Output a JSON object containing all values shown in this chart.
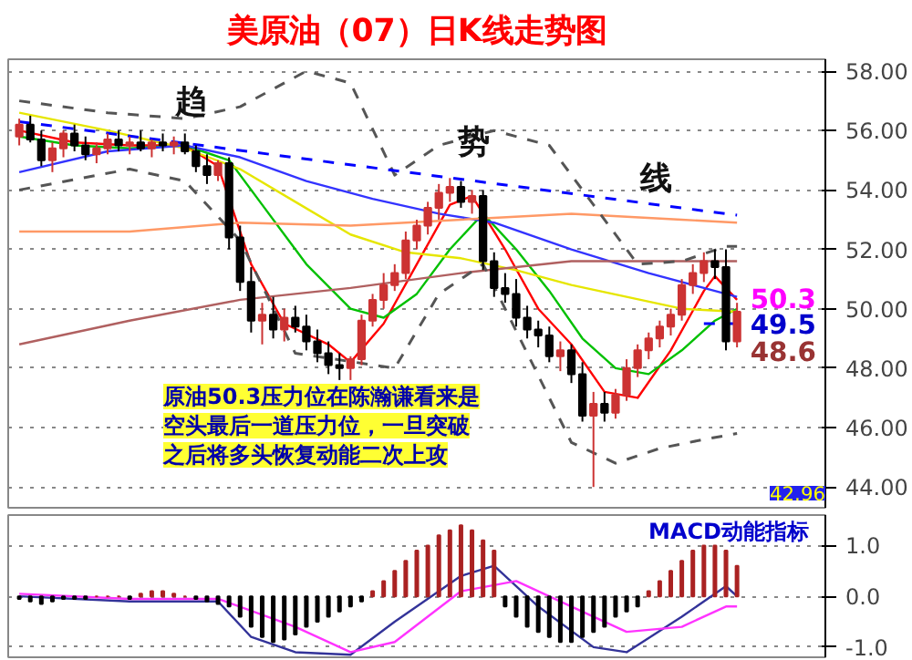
{
  "chart_data": [
    {
      "type": "candlestick",
      "title": "美原油（07）日K线走势图",
      "categories": [
        null,
        null,
        null,
        null,
        null,
        null,
        null,
        null,
        null,
        null,
        null,
        null,
        null,
        null,
        null,
        null,
        null,
        null,
        null,
        null,
        null,
        null,
        null,
        null,
        null,
        null,
        null,
        null,
        null,
        null,
        null,
        null,
        null,
        null,
        null,
        null,
        null,
        null,
        null,
        null,
        null,
        null,
        null,
        null,
        null,
        null,
        null,
        null,
        null,
        null,
        null,
        null,
        null,
        null,
        null,
        null,
        null,
        null,
        null,
        null,
        null,
        null,
        null,
        null,
        null,
        null
      ],
      "ohlc": [
        [
          55.8,
          56.4,
          55.5,
          56.2
        ],
        [
          56.2,
          56.5,
          55.6,
          55.7
        ],
        [
          55.7,
          56.0,
          54.8,
          55.0
        ],
        [
          55.0,
          55.6,
          54.6,
          55.4
        ],
        [
          55.4,
          56.0,
          55.1,
          55.9
        ],
        [
          55.9,
          56.2,
          55.3,
          55.5
        ],
        [
          55.5,
          55.8,
          55.0,
          55.2
        ],
        [
          55.2,
          55.6,
          54.9,
          55.4
        ],
        [
          55.4,
          55.9,
          55.2,
          55.7
        ],
        [
          55.7,
          56.0,
          55.3,
          55.5
        ],
        [
          55.5,
          55.8,
          55.2,
          55.6
        ],
        [
          55.6,
          56.0,
          55.3,
          55.4
        ],
        [
          55.4,
          55.7,
          55.1,
          55.6
        ],
        [
          55.6,
          55.9,
          55.3,
          55.5
        ],
        [
          55.5,
          55.8,
          55.2,
          55.6
        ],
        [
          55.6,
          55.9,
          55.2,
          55.3
        ],
        [
          55.3,
          55.5,
          54.6,
          54.8
        ],
        [
          54.8,
          55.2,
          54.2,
          54.5
        ],
        [
          54.5,
          55.0,
          54.3,
          54.9
        ],
        [
          54.9,
          55.1,
          52.0,
          52.4
        ],
        [
          52.4,
          52.8,
          50.6,
          50.9
        ],
        [
          50.9,
          51.4,
          49.2,
          49.6
        ],
        [
          49.6,
          50.2,
          48.8,
          49.8
        ],
        [
          49.8,
          50.4,
          49.0,
          49.3
        ],
        [
          49.3,
          50.0,
          48.9,
          49.7
        ],
        [
          49.7,
          50.1,
          49.2,
          49.4
        ],
        [
          49.4,
          49.8,
          48.6,
          48.9
        ],
        [
          48.9,
          49.3,
          48.2,
          48.5
        ],
        [
          48.5,
          48.9,
          47.8,
          48.1
        ],
        [
          48.1,
          48.5,
          47.6,
          48.0
        ],
        [
          48.0,
          48.4,
          47.6,
          48.3
        ],
        [
          48.3,
          49.8,
          48.1,
          49.6
        ],
        [
          49.6,
          50.5,
          49.4,
          50.3
        ],
        [
          50.3,
          51.2,
          50.0,
          50.8
        ],
        [
          50.8,
          51.5,
          50.6,
          51.2
        ],
        [
          51.2,
          52.6,
          51.0,
          52.3
        ],
        [
          52.3,
          53.0,
          52.0,
          52.8
        ],
        [
          52.8,
          53.6,
          52.5,
          53.4
        ],
        [
          53.4,
          54.2,
          53.0,
          53.9
        ],
        [
          53.9,
          54.4,
          53.6,
          54.1
        ],
        [
          54.1,
          54.3,
          53.4,
          53.6
        ],
        [
          53.6,
          54.0,
          53.2,
          53.8
        ],
        [
          53.8,
          54.0,
          51.3,
          51.6
        ],
        [
          51.6,
          51.9,
          50.4,
          50.7
        ],
        [
          50.7,
          51.2,
          50.2,
          50.5
        ],
        [
          50.5,
          51.0,
          49.4,
          49.7
        ],
        [
          49.7,
          50.1,
          49.0,
          49.3
        ],
        [
          49.3,
          49.6,
          48.7,
          49.1
        ],
        [
          49.1,
          49.4,
          48.2,
          48.4
        ],
        [
          48.4,
          48.9,
          47.9,
          48.6
        ],
        [
          48.6,
          48.8,
          47.5,
          47.8
        ],
        [
          47.8,
          48.2,
          46.2,
          46.4
        ],
        [
          46.4,
          47.2,
          44.0,
          46.8
        ],
        [
          46.8,
          47.2,
          46.2,
          46.5
        ],
        [
          46.5,
          47.3,
          46.3,
          47.1
        ],
        [
          47.1,
          48.3,
          46.9,
          48.0
        ],
        [
          48.0,
          48.8,
          47.7,
          48.6
        ],
        [
          48.6,
          49.2,
          48.3,
          49.0
        ],
        [
          49.0,
          49.6,
          48.7,
          49.4
        ],
        [
          49.4,
          50.0,
          49.1,
          49.8
        ],
        [
          49.8,
          51.0,
          49.6,
          50.8
        ],
        [
          50.8,
          51.5,
          50.5,
          51.2
        ],
        [
          51.2,
          51.9,
          50.9,
          51.6
        ],
        [
          51.6,
          52.0,
          51.0,
          51.4
        ],
        [
          51.4,
          52.0,
          48.6,
          48.9
        ],
        [
          48.9,
          50.2,
          48.7,
          49.9
        ]
      ],
      "colors": [
        "#cc3333",
        "#000000",
        "#000000",
        "#cc3333",
        "#cc3333",
        "#000000",
        "#000000",
        "#cc3333",
        "#cc3333",
        "#000000",
        "#cc3333",
        "#000000",
        "#cc3333",
        "#000000",
        "#cc3333",
        "#000000",
        "#000000",
        "#000000",
        "#cc3333",
        "#000000",
        "#000000",
        "#000000",
        "#cc3333",
        "#000000",
        "#cc3333",
        "#000000",
        "#000000",
        "#000000",
        "#000000",
        "#000000",
        "#cc3333",
        "#cc3333",
        "#cc3333",
        "#cc3333",
        "#cc3333",
        "#cc3333",
        "#cc3333",
        "#cc3333",
        "#cc3333",
        "#cc3333",
        "#000000",
        "#cc3333",
        "#000000",
        "#000000",
        "#000000",
        "#000000",
        "#000000",
        "#000000",
        "#000000",
        "#cc3333",
        "#000000",
        "#000000",
        "#cc3333",
        "#000000",
        "#cc3333",
        "#cc3333",
        "#cc3333",
        "#cc3333",
        "#cc3333",
        "#cc3333",
        "#cc3333",
        "#cc3333",
        "#cc3333",
        "#000000",
        "#000000",
        "#cc3333"
      ],
      "series": [
        {
          "type": "line",
          "color": "#ff0000",
          "values": [
            56.0,
            null,
            null,
            null,
            null,
            55.6,
            null,
            null,
            null,
            null,
            55.5,
            null,
            null,
            null,
            null,
            55.5,
            null,
            null,
            54.8,
            null,
            null,
            51.5,
            null,
            null,
            49.5,
            null,
            null,
            null,
            48.8,
            null,
            48.2,
            null,
            null,
            49.5,
            null,
            null,
            51.5,
            null,
            null,
            53.5,
            null,
            53.8,
            null,
            null,
            52.0,
            null,
            null,
            50.0,
            null,
            null,
            48.8,
            null,
            null,
            47.2,
            null,
            null,
            47.0,
            null,
            null,
            48.6,
            null,
            null,
            50.6,
            51.1,
            null,
            50.3
          ]
        },
        {
          "type": "line",
          "color": "#00c000",
          "values": [
            55.8,
            null,
            null,
            null,
            null,
            55.5,
            null,
            null,
            null,
            null,
            55.4,
            null,
            null,
            null,
            null,
            55.5,
            null,
            null,
            null,
            55.0,
            null,
            null,
            53.5,
            null,
            null,
            null,
            51.5,
            null,
            null,
            null,
            50.0,
            null,
            null,
            49.7,
            null,
            null,
            50.5,
            null,
            null,
            52.0,
            null,
            null,
            53.2,
            null,
            null,
            52.0,
            null,
            null,
            50.6,
            null,
            null,
            49.0,
            null,
            null,
            48.0,
            null,
            null,
            47.8,
            null,
            null,
            48.6,
            null,
            null,
            49.6,
            null,
            50.0
          ]
        },
        {
          "type": "line",
          "color": "#e6e600",
          "values": [
            56.6,
            null,
            null,
            null,
            null,
            null,
            null,
            null,
            56.0,
            null,
            null,
            null,
            null,
            null,
            null,
            55.4,
            null,
            null,
            null,
            null,
            54.7,
            null,
            null,
            null,
            null,
            53.6,
            null,
            null,
            null,
            null,
            52.5,
            null,
            null,
            null,
            null,
            51.9,
            null,
            null,
            null,
            null,
            51.7,
            null,
            null,
            null,
            null,
            51.3,
            null,
            null,
            null,
            null,
            50.8,
            null,
            null,
            null,
            null,
            50.4,
            null,
            null,
            null,
            null,
            50.0,
            null,
            null,
            null,
            null,
            49.9
          ]
        },
        {
          "type": "line",
          "color": "#3333ff",
          "values": [
            54.6,
            null,
            null,
            null,
            null,
            null,
            null,
            null,
            55.3,
            null,
            null,
            null,
            null,
            null,
            null,
            55.5,
            null,
            null,
            null,
            null,
            55.1,
            null,
            null,
            null,
            null,
            null,
            54.3,
            null,
            null,
            null,
            null,
            null,
            53.7,
            null,
            null,
            null,
            null,
            null,
            53.2,
            null,
            null,
            null,
            null,
            52.9,
            null,
            null,
            null,
            null,
            null,
            null,
            52.0,
            null,
            null,
            null,
            null,
            null,
            null,
            51.2,
            null,
            null,
            null,
            null,
            50.7,
            null,
            null,
            50.4
          ]
        },
        {
          "type": "line",
          "color": "#ff9966",
          "values": [
            52.6,
            null,
            null,
            null,
            null,
            null,
            null,
            null,
            null,
            null,
            52.6,
            null,
            null,
            null,
            null,
            null,
            null,
            null,
            null,
            null,
            52.9,
            null,
            null,
            null,
            null,
            null,
            null,
            null,
            null,
            null,
            52.8,
            null,
            null,
            null,
            null,
            null,
            null,
            null,
            null,
            null,
            53.0,
            null,
            null,
            null,
            null,
            null,
            null,
            null,
            null,
            null,
            53.2,
            null,
            null,
            null,
            null,
            null,
            null,
            null,
            null,
            null,
            53.0,
            null,
            null,
            null,
            null,
            52.9
          ]
        },
        {
          "type": "line",
          "color": "#b06060",
          "values": [
            48.8,
            null,
            null,
            null,
            null,
            null,
            null,
            null,
            null,
            null,
            49.6,
            null,
            null,
            null,
            null,
            null,
            null,
            null,
            null,
            null,
            50.3,
            null,
            null,
            null,
            null,
            null,
            null,
            null,
            null,
            null,
            50.7,
            null,
            null,
            null,
            null,
            null,
            null,
            null,
            null,
            null,
            51.2,
            null,
            null,
            null,
            null,
            null,
            null,
            null,
            null,
            null,
            51.6,
            null,
            null,
            null,
            null,
            null,
            null,
            null,
            null,
            null,
            51.6,
            null,
            null,
            null,
            null,
            51.6
          ]
        },
        {
          "type": "line",
          "color": "#555555",
          "line_style": "dashed",
          "values": [
            57.0,
            null,
            null,
            null,
            null,
            null,
            null,
            null,
            56.6,
            null,
            null,
            null,
            null,
            null,
            null,
            56.4,
            null,
            null,
            null,
            null,
            56.8,
            null,
            null,
            null,
            null,
            null,
            58.0,
            null,
            null,
            null,
            57.6,
            null,
            null,
            null,
            54.5,
            null,
            null,
            null,
            55.5,
            null,
            null,
            null,
            null,
            56.0,
            null,
            null,
            null,
            null,
            55.5,
            null,
            null,
            null,
            53.5,
            null,
            null,
            null,
            51.5,
            null,
            null,
            null,
            51.6,
            null,
            null,
            null,
            52.1,
            52.1
          ]
        },
        {
          "type": "line",
          "color": "#555555",
          "line_style": "dashed",
          "values": [
            54.0,
            null,
            null,
            null,
            null,
            null,
            null,
            null,
            null,
            null,
            54.7,
            null,
            null,
            null,
            null,
            54.3,
            null,
            null,
            null,
            null,
            52.3,
            null,
            null,
            null,
            null,
            48.5,
            null,
            null,
            null,
            null,
            null,
            null,
            null,
            null,
            48.0,
            null,
            null,
            null,
            50.5,
            null,
            null,
            null,
            51.5,
            null,
            null,
            null,
            48.5,
            null,
            null,
            null,
            45.5,
            null,
            null,
            null,
            44.8,
            null,
            null,
            null,
            45.3,
            null,
            null,
            null,
            45.6,
            null,
            null,
            45.8
          ]
        },
        {
          "type": "line",
          "color": "#0000ff",
          "line_style": "dashed",
          "values": [
            56.3,
            null,
            null,
            null,
            null,
            null,
            null,
            null,
            null,
            null,
            null,
            null,
            null,
            null,
            null,
            null,
            null,
            null,
            null,
            null,
            null,
            null,
            null,
            null,
            null,
            null,
            null,
            null,
            null,
            null,
            null,
            null,
            null,
            null,
            null,
            null,
            null,
            null,
            null,
            null,
            null,
            null,
            null,
            null,
            null,
            null,
            null,
            null,
            null,
            null,
            null,
            null,
            null,
            null,
            null,
            null,
            null,
            null,
            null,
            null,
            null,
            null,
            null,
            null,
            null,
            53.15
          ]
        },
        {
          "type": "line",
          "color": "#0000ff",
          "line_style": "dashed",
          "values": [
            null,
            null,
            null,
            null,
            null,
            null,
            null,
            null,
            null,
            null,
            null,
            null,
            null,
            null,
            null,
            null,
            null,
            null,
            null,
            null,
            null,
            null,
            null,
            null,
            null,
            null,
            null,
            null,
            null,
            null,
            null,
            null,
            null,
            null,
            null,
            null,
            null,
            null,
            null,
            null,
            null,
            null,
            null,
            null,
            null,
            null,
            null,
            null,
            null,
            null,
            null,
            null,
            null,
            null,
            null,
            null,
            null,
            null,
            null,
            null,
            null,
            null,
            49.5,
            null,
            null,
            49.5
          ]
        }
      ],
      "ylim": [
        43.3,
        58.4
      ],
      "yticks": [
        {
          "value": 44,
          "label": "44.00"
        },
        {
          "value": 46,
          "label": "46.00"
        },
        {
          "value": 48,
          "label": "48.00"
        },
        {
          "value": 50,
          "label": "50.00"
        },
        {
          "value": 52,
          "label": "52.00"
        },
        {
          "value": 54,
          "label": "54.00"
        },
        {
          "value": 56,
          "label": "56.00"
        },
        {
          "value": 58,
          "label": "58.00"
        }
      ],
      "grid": "y",
      "tick_labels": "y",
      "annotations": [
        "趋",
        "势",
        "线",
        "50.3",
        "49.5",
        "48.6",
        "原油50.3压力位在陈瀚谦看来是空头最后一道压力位，一旦突破之后将多头恢复动能二次上攻",
        "42.96"
      ]
    },
    {
      "type": "bar",
      "categories": [
        null,
        null,
        null,
        null,
        null,
        null,
        null,
        null,
        null,
        null,
        null,
        null,
        null,
        null,
        null,
        null,
        null,
        null,
        null,
        null,
        null,
        null,
        null,
        null,
        null,
        null,
        null,
        null,
        null,
        null,
        null,
        null,
        null,
        null,
        null,
        null,
        null,
        null,
        null,
        null,
        null,
        null,
        null,
        null,
        null,
        null,
        null,
        null,
        null,
        null,
        null,
        null,
        null,
        null,
        null,
        null,
        null,
        null,
        null,
        null,
        null,
        null,
        null,
        null,
        null,
        null
      ],
      "series": [
        {
          "type": "bar",
          "values": [
            -0.05,
            -0.1,
            -0.15,
            -0.1,
            -0.05,
            -0.05,
            -0.05,
            0,
            0,
            0,
            -0.05,
            0.05,
            0.1,
            0.1,
            0.05,
            0,
            -0.05,
            -0.1,
            -0.15,
            -0.2,
            -0.4,
            -0.6,
            -0.8,
            -0.9,
            -0.85,
            -0.75,
            -0.6,
            -0.5,
            -0.4,
            -0.3,
            -0.2,
            -0.1,
            0.1,
            0.3,
            0.5,
            0.7,
            0.9,
            1.0,
            1.2,
            1.3,
            1.4,
            1.3,
            1.1,
            0.9,
            -0.2,
            -0.4,
            -0.6,
            -0.7,
            -0.8,
            -0.9,
            -0.9,
            -0.8,
            -0.7,
            -0.6,
            -0.4,
            -0.3,
            -0.2,
            0.1,
            0.3,
            0.5,
            0.7,
            0.9,
            1.0,
            1.0,
            0.9,
            0.6
          ],
          "colors": [
            "#000000",
            "#000000",
            "#000000",
            "#000000",
            "#000000",
            "#000000",
            "#000000",
            "#aa2222",
            "#aa2222",
            "#aa2222",
            "#000000",
            "#aa2222",
            "#aa2222",
            "#aa2222",
            "#aa2222",
            "#aa2222",
            "#000000",
            "#000000",
            "#000000",
            "#000000",
            "#000000",
            "#000000",
            "#000000",
            "#000000",
            "#000000",
            "#000000",
            "#000000",
            "#000000",
            "#000000",
            "#000000",
            "#000000",
            "#000000",
            "#aa2222",
            "#aa2222",
            "#aa2222",
            "#aa2222",
            "#aa2222",
            "#aa2222",
            "#aa2222",
            "#aa2222",
            "#aa2222",
            "#aa2222",
            "#aa2222",
            "#aa2222",
            "#000000",
            "#000000",
            "#000000",
            "#000000",
            "#000000",
            "#000000",
            "#000000",
            "#000000",
            "#000000",
            "#000000",
            "#000000",
            "#000000",
            "#000000",
            "#aa2222",
            "#aa2222",
            "#aa2222",
            "#aa2222",
            "#aa2222",
            "#aa2222",
            "#aa2222",
            "#aa2222",
            "#aa2222"
          ]
        },
        {
          "type": "line",
          "color": "#333399",
          "values": [
            0.0,
            null,
            null,
            null,
            null,
            null,
            null,
            null,
            null,
            null,
            -0.1,
            null,
            null,
            null,
            null,
            null,
            null,
            null,
            -0.1,
            null,
            null,
            -0.8,
            null,
            null,
            null,
            -1.1,
            null,
            null,
            null,
            null,
            -1.15,
            null,
            null,
            null,
            -0.5,
            null,
            null,
            null,
            null,
            null,
            0.4,
            null,
            null,
            0.6,
            null,
            null,
            null,
            -0.2,
            null,
            null,
            null,
            null,
            -1.0,
            null,
            null,
            -1.1,
            null,
            null,
            null,
            null,
            -0.4,
            null,
            null,
            null,
            0.2,
            0.0
          ]
        },
        {
          "type": "line",
          "color": "#ff33ff",
          "values": [
            0.05,
            null,
            null,
            null,
            null,
            null,
            null,
            null,
            null,
            null,
            -0.05,
            null,
            null,
            null,
            null,
            null,
            null,
            null,
            -0.05,
            null,
            null,
            null,
            null,
            null,
            null,
            -0.6,
            null,
            null,
            null,
            null,
            -1.1,
            null,
            null,
            null,
            -0.9,
            null,
            null,
            null,
            null,
            null,
            0.1,
            null,
            null,
            null,
            null,
            0.3,
            null,
            null,
            null,
            null,
            -0.2,
            null,
            null,
            null,
            null,
            -0.7,
            null,
            null,
            null,
            null,
            -0.6,
            null,
            null,
            null,
            -0.2,
            -0.2
          ]
        }
      ],
      "ylim": [
        -1.2,
        1.6
      ],
      "yticks": [
        {
          "value": -1,
          "label": "-1.0"
        },
        {
          "value": 0,
          "label": "0.0"
        },
        {
          "value": 1,
          "label": "1.0"
        }
      ],
      "grid": "y",
      "tick_labels": "y",
      "annotations": [
        "MACD动能指标"
      ]
    }
  ]
}
